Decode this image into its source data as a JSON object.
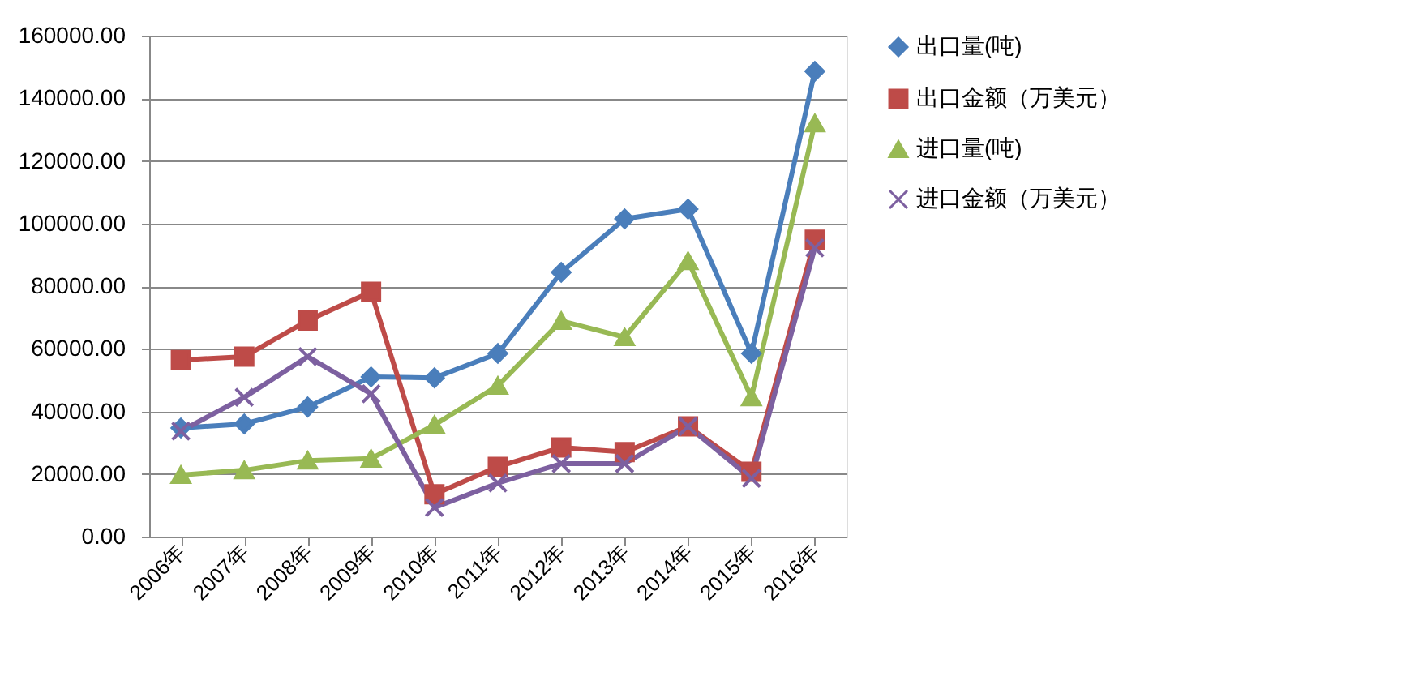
{
  "chart_data": {
    "type": "line",
    "categories": [
      "2006年",
      "2007年",
      "2008年",
      "2009年",
      "2010年",
      "2011年",
      "2012年",
      "2013年",
      "2014年",
      "2015年",
      "2016年"
    ],
    "series": [
      {
        "name": "出口量(吨)",
        "color": "#4a7ebb",
        "marker": "diamond",
        "values": [
          34700,
          36000,
          41400,
          51000,
          50700,
          58500,
          84400,
          101500,
          104600,
          58500,
          148600
        ]
      },
      {
        "name": "出口金额（万美元）",
        "color": "#be4b48",
        "marker": "square",
        "values": [
          56400,
          57500,
          69000,
          78200,
          13500,
          22300,
          28500,
          27000,
          35200,
          20700,
          94800
        ]
      },
      {
        "name": "进口量(吨)",
        "color": "#98b954",
        "marker": "triangle",
        "values": [
          19700,
          21200,
          24300,
          24900,
          35700,
          48200,
          68900,
          63700,
          88000,
          44500,
          132000
        ]
      },
      {
        "name": "进口金额（万美元）",
        "color": "#7d60a0",
        "marker": "cross",
        "values": [
          33700,
          44500,
          57500,
          45600,
          9300,
          17100,
          23300,
          23300,
          35200,
          18600,
          92200
        ]
      }
    ],
    "ylim": [
      0,
      160000
    ],
    "yticks": [
      {
        "value": 0,
        "label": "0.00"
      },
      {
        "value": 20000,
        "label": "20000.00"
      },
      {
        "value": 40000,
        "label": "40000.00"
      },
      {
        "value": 60000,
        "label": "60000.00"
      },
      {
        "value": 80000,
        "label": "80000.00"
      },
      {
        "value": 100000,
        "label": "100000.00"
      },
      {
        "value": 120000,
        "label": "120000.00"
      },
      {
        "value": 140000,
        "label": "140000.00"
      },
      {
        "value": 160000,
        "label": "160000.00"
      }
    ],
    "grid": "y",
    "legend": "right",
    "line_style": "solid"
  }
}
